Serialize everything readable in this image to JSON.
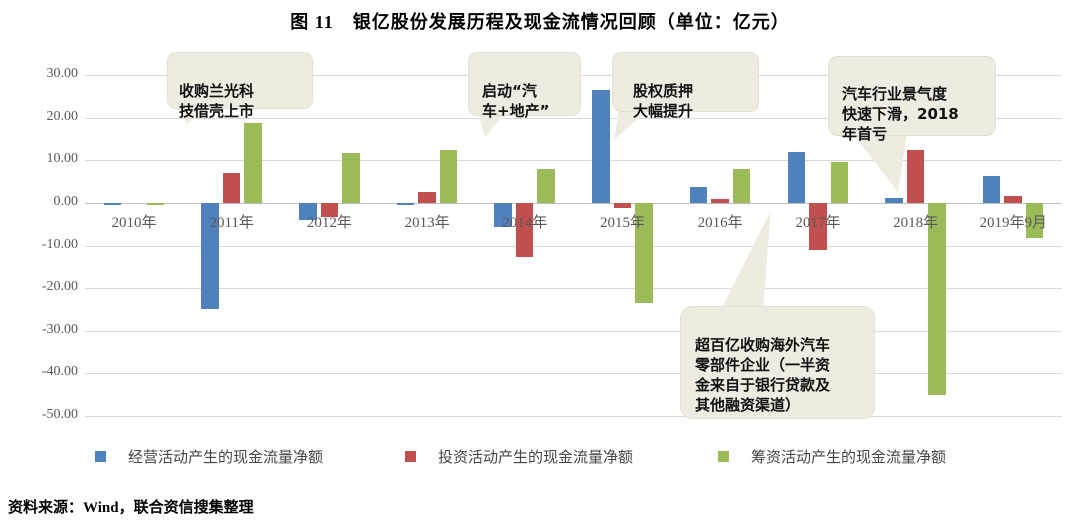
{
  "title": "图 11　银亿股份发展历程及现金流情况回顾（单位：亿元）",
  "source_note": "资料来源：Wind，联合资信搜集整理",
  "colors": {
    "operating_blue": "#4f81bd",
    "investing_red": "#c0504d",
    "financing_green": "#9bbb59",
    "callout_bg": "#eeece1",
    "gridline": "#d9d9d9",
    "axis_text": "#595959"
  },
  "legend": [
    {
      "label": "经营活动产生的现金流量净额",
      "color": "#4f81bd"
    },
    {
      "label": "投资活动产生的现金流量净额",
      "color": "#c0504d"
    },
    {
      "label": "筹资活动产生的现金流量净额",
      "color": "#9bbb59"
    }
  ],
  "annotations": [
    {
      "text": "收购兰光科\n技借壳上市"
    },
    {
      "text": "启动“汽\n车+地产”"
    },
    {
      "text": "股权质押\n大幅提升"
    },
    {
      "text": "汽车行业景气度\n快速下滑，2018\n年首亏"
    },
    {
      "text": "超百亿收购海外汽车\n零部件企业（一半资\n金来自于银行贷款及\n其他融资渠道）"
    }
  ],
  "chart_data": {
    "type": "bar",
    "title": "图 11　银亿股份发展历程及现金流情况回顾（单位：亿元）",
    "categories": [
      "2010年",
      "2011年",
      "2012年",
      "2013年",
      "2014年",
      "2015年",
      "2016年",
      "2017年",
      "2018年",
      "2019年9月"
    ],
    "series": [
      {
        "name": "经营活动产生的现金流量净额",
        "color": "#4f81bd",
        "values": [
          -0.6,
          -25.0,
          -4.0,
          -0.5,
          -5.6,
          26.5,
          3.8,
          11.9,
          1.1,
          6.3
        ]
      },
      {
        "name": "投资活动产生的现金流量净额",
        "color": "#c0504d",
        "values": [
          0.0,
          7.0,
          -3.4,
          2.5,
          -12.6,
          -1.2,
          0.8,
          -11.1,
          12.3,
          1.6
        ]
      },
      {
        "name": "筹资活动产生的现金流量净额",
        "color": "#9bbb59",
        "values": [
          -0.5,
          18.8,
          11.8,
          12.3,
          7.9,
          -23.5,
          8.0,
          9.5,
          -45.0,
          -8.3
        ]
      }
    ],
    "ylim": [
      -50,
      30
    ],
    "ytick_step": 10,
    "ytick_labels": [
      "30.00",
      "20.00",
      "10.00",
      "0.00",
      "-10.00",
      "-20.00",
      "-30.00",
      "-40.00",
      "-50.00"
    ],
    "xlabel": "",
    "ylabel": "",
    "grid": true,
    "legend_position": "bottom"
  }
}
